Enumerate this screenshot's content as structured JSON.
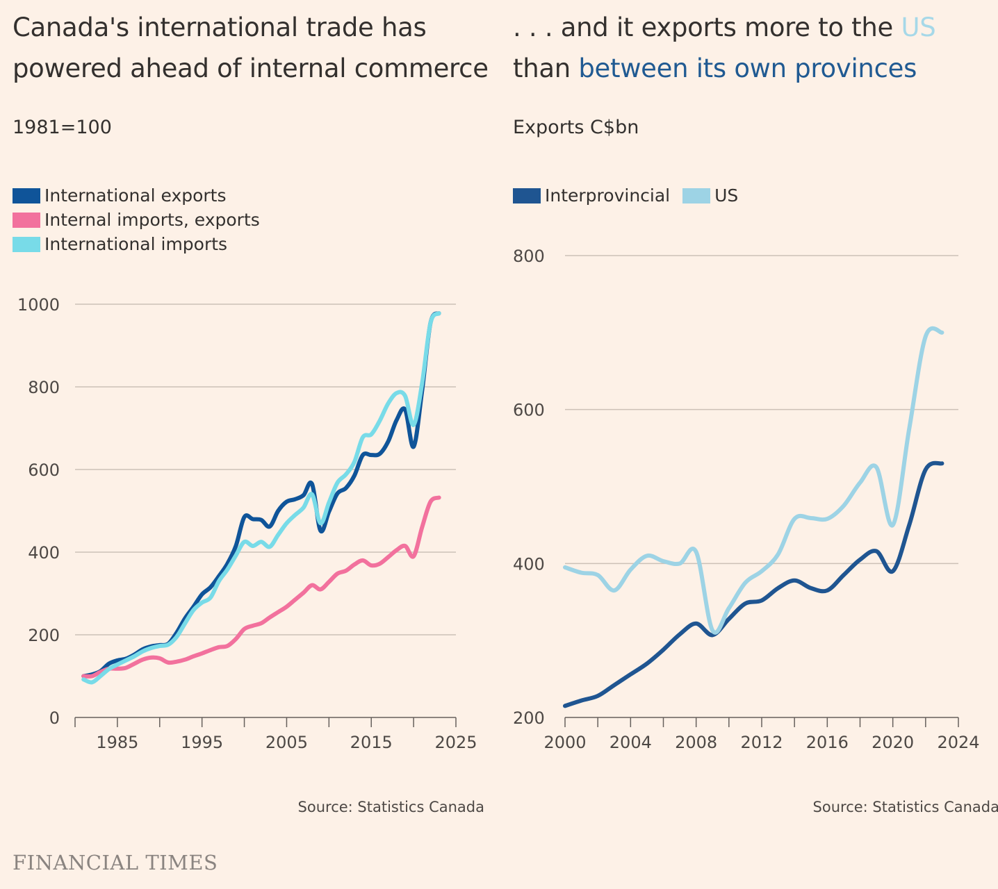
{
  "footer": {
    "logo": "FINANCIAL TIMES"
  },
  "chart_data": [
    {
      "type": "line",
      "title": "Canada's international trade has powered ahead of internal commerce",
      "subtitle": "1981=100",
      "ylim": [
        0,
        1000
      ],
      "xlim": [
        1981,
        2025
      ],
      "y_ticks": [
        0,
        200,
        400,
        600,
        800,
        1000
      ],
      "x_ticks": [
        1985,
        1995,
        2005,
        2015,
        2025
      ],
      "x_minor_ticks": [
        1980,
        1985,
        1990,
        1995,
        2000,
        2005,
        2010,
        2015,
        2020,
        2025
      ],
      "grid": true,
      "legend_position": "top-left",
      "source": "Source: Statistics Canada",
      "series": [
        {
          "name": "International exports",
          "color": "#0f5499",
          "x": [
            1981,
            1982,
            1983,
            1984,
            1985,
            1986,
            1987,
            1988,
            1989,
            1990,
            1991,
            1992,
            1993,
            1994,
            1995,
            1996,
            1997,
            1998,
            1999,
            2000,
            2001,
            2002,
            2003,
            2004,
            2005,
            2006,
            2007,
            2008,
            2009,
            2010,
            2011,
            2012,
            2013,
            2014,
            2015,
            2016,
            2017,
            2018,
            2019,
            2020,
            2021,
            2022,
            2023
          ],
          "values": [
            100,
            104,
            112,
            130,
            138,
            142,
            152,
            165,
            172,
            175,
            178,
            205,
            240,
            268,
            298,
            315,
            342,
            372,
            415,
            485,
            480,
            478,
            462,
            500,
            522,
            528,
            538,
            565,
            452,
            498,
            542,
            555,
            585,
            635,
            635,
            638,
            668,
            720,
            745,
            655,
            790,
            955,
            978
          ]
        },
        {
          "name": "Internal imports, exports",
          "color": "#f2719d",
          "x": [
            1981,
            1982,
            1983,
            1984,
            1985,
            1986,
            1987,
            1988,
            1989,
            1990,
            1991,
            1992,
            1993,
            1994,
            1995,
            1996,
            1997,
            1998,
            1999,
            2000,
            2001,
            2002,
            2003,
            2004,
            2005,
            2006,
            2007,
            2008,
            2009,
            2010,
            2011,
            2012,
            2013,
            2014,
            2015,
            2016,
            2017,
            2018,
            2019,
            2020,
            2021,
            2022,
            2023
          ],
          "values": [
            100,
            100,
            110,
            118,
            118,
            120,
            130,
            140,
            145,
            143,
            133,
            135,
            140,
            148,
            155,
            163,
            170,
            173,
            190,
            214,
            222,
            228,
            242,
            255,
            268,
            285,
            302,
            320,
            310,
            328,
            348,
            355,
            370,
            380,
            368,
            372,
            388,
            405,
            415,
            390,
            460,
            522,
            532
          ]
        },
        {
          "name": "International imports",
          "color": "#78dbe8",
          "x": [
            1981,
            1982,
            1983,
            1984,
            1985,
            1986,
            1987,
            1988,
            1989,
            1990,
            1991,
            1992,
            1993,
            1994,
            1995,
            1996,
            1997,
            1998,
            1999,
            2000,
            2001,
            2002,
            2003,
            2004,
            2005,
            2006,
            2007,
            2008,
            2009,
            2010,
            2011,
            2012,
            2013,
            2014,
            2015,
            2016,
            2017,
            2018,
            2019,
            2020,
            2021,
            2022,
            2023
          ],
          "values": [
            92,
            85,
            100,
            117,
            128,
            138,
            148,
            160,
            168,
            173,
            176,
            195,
            228,
            260,
            278,
            290,
            330,
            358,
            392,
            425,
            415,
            425,
            413,
            442,
            470,
            490,
            508,
            540,
            470,
            520,
            568,
            588,
            618,
            678,
            685,
            718,
            760,
            785,
            778,
            708,
            808,
            955,
            978
          ]
        }
      ]
    },
    {
      "type": "line",
      "title_parts": [
        {
          "text": ". . . and it exports more to the ",
          "color": "#33302e"
        },
        {
          "text": "US",
          "color": "#a6d8e8"
        },
        {
          "text": " than ",
          "color": "#33302e"
        },
        {
          "text": "between its own provinces",
          "color": "#205a92"
        }
      ],
      "subtitle": "Exports C$bn",
      "ylim": [
        200,
        800
      ],
      "xlim": [
        2000,
        2024
      ],
      "y_ticks": [
        200,
        400,
        600,
        800
      ],
      "x_ticks": [
        2000,
        2004,
        2008,
        2012,
        2016,
        2020,
        2024
      ],
      "x_minor_ticks": [
        2000,
        2002,
        2004,
        2006,
        2008,
        2010,
        2012,
        2014,
        2016,
        2018,
        2020,
        2022,
        2024
      ],
      "grid": true,
      "legend_position": "top-left",
      "source": "Source: Statistics Canada",
      "series": [
        {
          "name": "Interprovincial",
          "color": "#1f5591",
          "x": [
            2000,
            2001,
            2002,
            2003,
            2004,
            2005,
            2006,
            2007,
            2008,
            2009,
            2010,
            2011,
            2012,
            2013,
            2014,
            2015,
            2016,
            2017,
            2018,
            2019,
            2020,
            2021,
            2022,
            2023
          ],
          "values": [
            215,
            222,
            228,
            242,
            256,
            270,
            288,
            308,
            322,
            307,
            328,
            348,
            352,
            368,
            378,
            368,
            365,
            385,
            405,
            416,
            390,
            450,
            522,
            530
          ]
        },
        {
          "name": "US",
          "color": "#9dd3e5",
          "x": [
            2000,
            2001,
            2002,
            2003,
            2004,
            2005,
            2006,
            2007,
            2008,
            2009,
            2010,
            2011,
            2012,
            2013,
            2014,
            2015,
            2016,
            2017,
            2018,
            2019,
            2020,
            2021,
            2022,
            2023
          ],
          "values": [
            395,
            388,
            385,
            365,
            392,
            410,
            403,
            400,
            415,
            313,
            342,
            375,
            390,
            412,
            458,
            459,
            458,
            475,
            505,
            525,
            450,
            575,
            695,
            700
          ]
        }
      ]
    }
  ]
}
